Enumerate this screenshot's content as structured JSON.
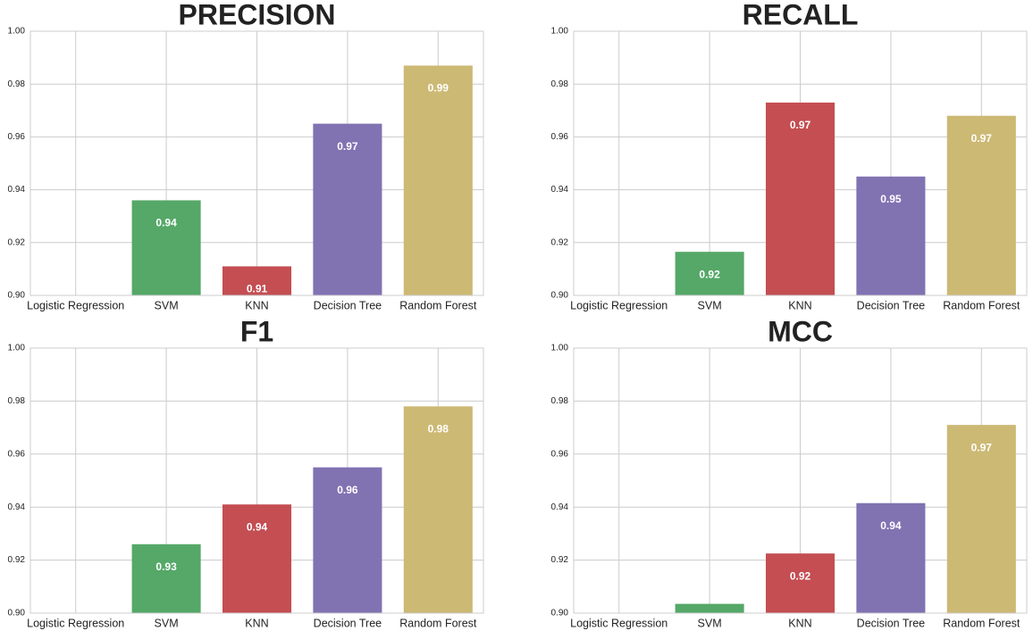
{
  "chart_data": [
    {
      "type": "bar",
      "title": "PRECISION",
      "categories": [
        "Logistic Regression",
        "SVM",
        "KNN",
        "Decision Tree",
        "Random Forest"
      ],
      "values": [
        null,
        0.936,
        0.911,
        0.965,
        0.987
      ],
      "value_labels": [
        null,
        "0.94",
        "0.91",
        "0.97",
        "0.99"
      ],
      "colors": [
        "#4c72b0",
        "#55a868",
        "#c44e52",
        "#8172b2",
        "#ccb974"
      ],
      "ylim": [
        0.9,
        1.0
      ],
      "yticks": [
        {
          "value": 0.9,
          "label": "0.90"
        },
        0.92,
        0.94,
        0.96,
        0.98,
        {
          "value": 1.0,
          "label": "1.00"
        }
      ],
      "grid": true
    },
    {
      "type": "bar",
      "title": "RECALL",
      "categories": [
        "Logistic Regression",
        "SVM",
        "KNN",
        "Decision Tree",
        "Random Forest"
      ],
      "values": [
        null,
        0.9165,
        0.973,
        0.945,
        0.968
      ],
      "value_labels": [
        null,
        "0.92",
        "0.97",
        "0.95",
        "0.97"
      ],
      "colors": [
        "#4c72b0",
        "#55a868",
        "#c44e52",
        "#8172b2",
        "#ccb974"
      ],
      "ylim": [
        0.9,
        1.0
      ],
      "yticks": [
        {
          "value": 0.9,
          "label": "0.90"
        },
        0.92,
        0.94,
        0.96,
        0.98,
        {
          "value": 1.0,
          "label": "1.00"
        }
      ],
      "grid": true
    },
    {
      "type": "bar",
      "title": "F1",
      "categories": [
        "Logistic Regression",
        "SVM",
        "KNN",
        "Decision Tree",
        "Random Forest"
      ],
      "values": [
        null,
        0.926,
        0.941,
        0.955,
        0.978
      ],
      "value_labels": [
        null,
        "0.93",
        "0.94",
        "0.96",
        "0.98"
      ],
      "colors": [
        "#4c72b0",
        "#55a868",
        "#c44e52",
        "#8172b2",
        "#ccb974"
      ],
      "ylim": [
        0.9,
        1.0
      ],
      "yticks": [
        {
          "value": 0.9,
          "label": "0.90"
        },
        0.92,
        0.94,
        0.96,
        0.98,
        {
          "value": 1.0,
          "label": "1.00"
        }
      ],
      "grid": true
    },
    {
      "type": "bar",
      "title": "MCC",
      "categories": [
        "Logistic Regression",
        "SVM",
        "KNN",
        "Decision Tree",
        "Random Forest"
      ],
      "values": [
        null,
        0.9035,
        0.9225,
        0.9415,
        0.971
      ],
      "value_labels": [
        null,
        null,
        "0.92",
        "0.94",
        "0.97"
      ],
      "colors": [
        "#4c72b0",
        "#55a868",
        "#c44e52",
        "#8172b2",
        "#ccb974"
      ],
      "ylim": [
        0.9,
        1.0
      ],
      "yticks": [
        {
          "value": 0.9,
          "label": "0.90"
        },
        0.92,
        0.94,
        0.96,
        0.98,
        {
          "value": 1.0,
          "label": "1.00"
        }
      ],
      "grid": true
    }
  ]
}
